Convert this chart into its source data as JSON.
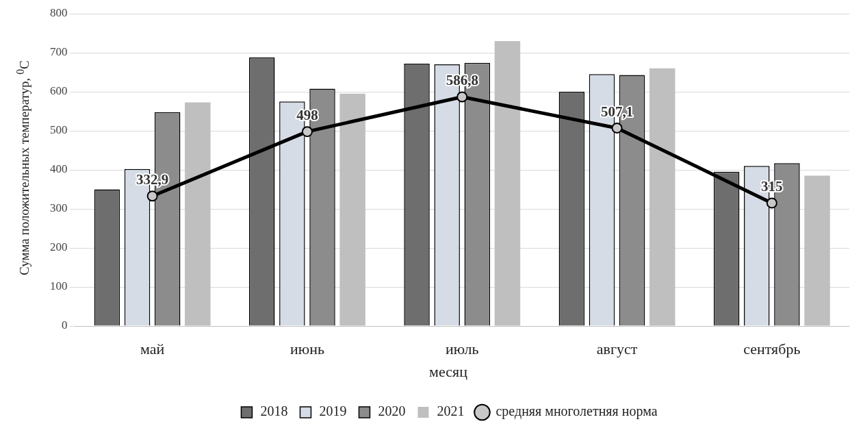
{
  "chart_data": {
    "type": "bar",
    "ylabel": "Сумма положительных температур, $^{0}$С",
    "xlabel": "месяц",
    "categories": [
      "май",
      "июнь",
      "июль",
      "август",
      "сентябрь"
    ],
    "series": [
      {
        "name": "2018",
        "color": "#6e6e6e",
        "values": [
          350,
          688,
          672,
          600,
          395
        ]
      },
      {
        "name": "2019",
        "color": "#d5dce6",
        "values": [
          402,
          575,
          670,
          645,
          410
        ]
      },
      {
        "name": "2020",
        "color": "#8c8c8c",
        "values": [
          548,
          608,
          674,
          643,
          417
        ]
      },
      {
        "name": "2021",
        "color": "#bfbfbf",
        "values": [
          573,
          595,
          730,
          660,
          385
        ]
      },
      {
        "name": "средняя многолетняя норма",
        "type": "line",
        "color": "#000000",
        "marker": "circle",
        "values": [
          332.9,
          498,
          586.8,
          507.1,
          315
        ],
        "value_labels": [
          "332,9",
          "498",
          "586,8",
          "507,1",
          "315"
        ]
      }
    ],
    "ylim": [
      0,
      800
    ],
    "yticks": [
      0,
      100,
      200,
      300,
      400,
      500,
      600,
      700,
      800
    ],
    "grid": "y",
    "legend": "bottom"
  }
}
